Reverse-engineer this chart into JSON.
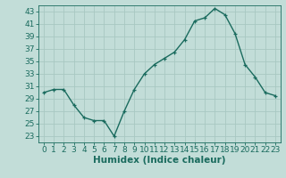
{
  "x": [
    0,
    1,
    2,
    3,
    4,
    5,
    6,
    7,
    8,
    9,
    10,
    11,
    12,
    13,
    14,
    15,
    16,
    17,
    18,
    19,
    20,
    21,
    22,
    23
  ],
  "y": [
    30,
    30.5,
    30.5,
    28,
    26,
    25.5,
    25.5,
    23,
    27,
    30.5,
    33,
    34.5,
    35.5,
    36.5,
    38.5,
    41.5,
    42,
    43.5,
    42.5,
    39.5,
    34.5,
    32.5,
    30,
    29.5
  ],
  "line_color": "#1a6b5e",
  "marker": "+",
  "bg_color": "#c2ddd8",
  "grid_color": "#a8c8c2",
  "xlabel": "Humidex (Indice chaleur)",
  "xlim": [
    -0.5,
    23.5
  ],
  "ylim": [
    22,
    44
  ],
  "yticks": [
    23,
    25,
    27,
    29,
    31,
    33,
    35,
    37,
    39,
    41,
    43
  ],
  "xticks": [
    0,
    1,
    2,
    3,
    4,
    5,
    6,
    7,
    8,
    9,
    10,
    11,
    12,
    13,
    14,
    15,
    16,
    17,
    18,
    19,
    20,
    21,
    22,
    23
  ],
  "tick_fontsize": 6.5,
  "label_fontsize": 7.5,
  "linewidth": 1.0,
  "markersize": 3.5,
  "markeredgewidth": 0.9
}
